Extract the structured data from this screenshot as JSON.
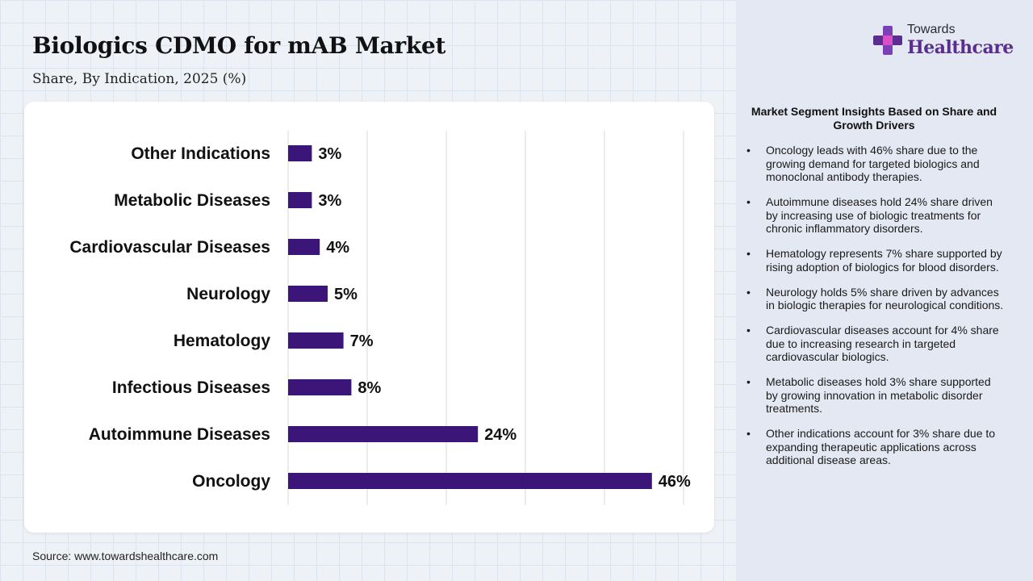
{
  "header": {
    "title": "Biologics CDMO for mAB Market",
    "subtitle": "Share, By Indication, 2025 (%)"
  },
  "logo": {
    "top_text": "Towards",
    "bottom_text": "Healthcare",
    "icon": "plus-cross-logo-icon"
  },
  "source": "Source: www.towardshealthcare.com",
  "colors": {
    "bar": "#3b1578",
    "brand": "#5a2d91",
    "gridline": "#d9d9d9"
  },
  "chart_data": {
    "type": "bar",
    "orientation": "horizontal",
    "categories": [
      "Other Indications",
      "Metabolic Diseases",
      "Cardiovascular Diseases",
      "Neurology",
      "Hematology",
      "Infectious Diseases",
      "Autoimmune Diseases",
      "Oncology"
    ],
    "values": [
      3,
      3,
      4,
      5,
      7,
      8,
      24,
      46
    ],
    "data_labels": [
      "3%",
      "3%",
      "4%",
      "5%",
      "7%",
      "8%",
      "24%",
      "46%"
    ],
    "title": "Biologics CDMO for mAB Market",
    "subtitle": "Share, By Indication, 2025 (%)",
    "xlim": [
      0,
      50
    ],
    "grid": true,
    "legend": "none"
  },
  "insights": {
    "heading": "Market Segment Insights Based on Share and Growth Drivers",
    "bullet": "•",
    "items": [
      "Oncology leads with 46% share due to the growing demand for targeted biologics and monoclonal antibody therapies.",
      "Autoimmune diseases hold 24% share driven by increasing use of biologic treatments for chronic inflammatory disorders.",
      "Hematology represents 7% share supported by rising adoption of biologics for blood disorders.",
      "Neurology holds 5% share driven by advances in biologic therapies for neurological conditions.",
      "Cardiovascular diseases account for 4% share due to increasing research in targeted cardiovascular biologics.",
      "Metabolic diseases hold 3% share supported by growing innovation in metabolic disorder treatments.",
      "Other indications account for 3% share due to expanding therapeutic applications across additional disease areas."
    ]
  }
}
